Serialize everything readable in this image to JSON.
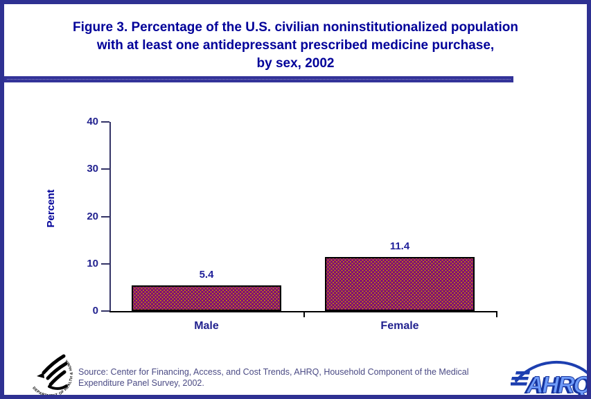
{
  "title": {
    "lines": [
      "Figure 3. Percentage of the U.S. civilian noninstitutionalized population",
      "with at least one antidepressant prescribed medicine purchase,",
      "by sex, 2002"
    ]
  },
  "chart_data": {
    "type": "bar",
    "categories": [
      "Male",
      "Female"
    ],
    "values": [
      5.4,
      11.4
    ],
    "title": "Percentage of the U.S. civilian noninstitutionalized population with at least one antidepressant prescribed medicine purchase, by sex, 2002",
    "xlabel": "",
    "ylabel": "Percent",
    "ylim": [
      0,
      40
    ],
    "yticks": [
      0,
      10,
      20,
      30,
      40
    ],
    "grid": false,
    "legend": false,
    "bar_color": "#7a0080",
    "bar_border_color": "#000000",
    "value_label_color": "#1f1f9a"
  },
  "footer": {
    "source_lines": [
      "Source: Center for Financing, Access, and Cost Trends, AHRQ, Household Component of the Medical",
      "Expenditure Panel Survey, 2002."
    ],
    "hhs_seal_text": "DEPARTMENT OF HEALTH & HUMAN SERVICES·USA",
    "ahrq_text": "AHRQ"
  },
  "colors": {
    "page_border": "#2e3192",
    "divider": "#333399",
    "title_text": "#000099",
    "axis_navy": "#333366",
    "x_axis_black": "#000000",
    "source_text": "#4a4a84",
    "ahrq_dark_blue": "#1d3fb0",
    "ahrq_light_blue": "#6f9bf8"
  }
}
